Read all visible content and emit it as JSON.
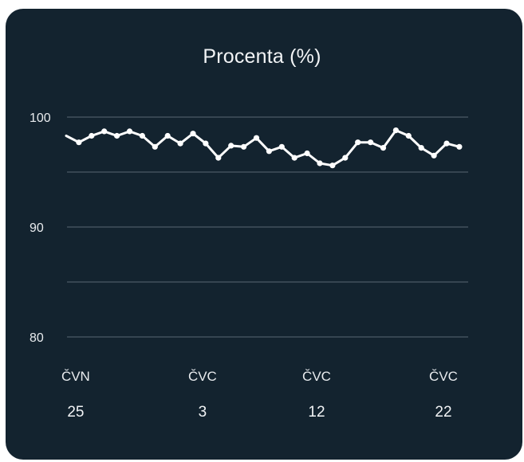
{
  "chart_data": {
    "type": "line",
    "title": "Procenta (%)",
    "xlabel": "",
    "ylabel": "",
    "ylim": [
      80,
      100
    ],
    "y_ticks": [
      {
        "value": 100,
        "label": "100"
      },
      {
        "value": 90,
        "label": "90"
      },
      {
        "value": 80,
        "label": "80"
      }
    ],
    "gridlines": [
      100,
      95,
      90,
      85,
      80
    ],
    "x_ticks": [
      {
        "index": 1,
        "month": "ČVN",
        "day": "25"
      },
      {
        "index": 11,
        "month": "ČVC",
        "day": "3"
      },
      {
        "index": 20,
        "month": "ČVC",
        "day": "12"
      },
      {
        "index": 30,
        "month": "ČVC",
        "day": "22"
      }
    ],
    "grid": true,
    "legend": "none",
    "colors": {
      "background": "#13232f",
      "line": "#ffffff",
      "grid": "#4b5a66",
      "text": "#e8ebee"
    },
    "series": [
      {
        "values": [
          98.3,
          97.7,
          98.3,
          98.7,
          98.3,
          98.7,
          98.3,
          97.3,
          98.3,
          97.6,
          98.5,
          97.6,
          96.3,
          97.4,
          97.3,
          98.1,
          96.9,
          97.3,
          96.3,
          96.7,
          95.8,
          95.6,
          96.3,
          97.7,
          97.7,
          97.2,
          98.8,
          98.3,
          97.2,
          96.5,
          97.6,
          97.3
        ]
      }
    ]
  }
}
